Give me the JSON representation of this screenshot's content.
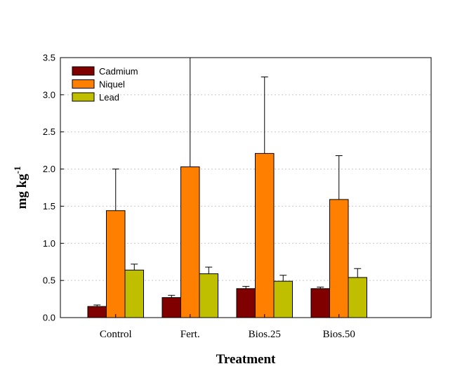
{
  "chart_data": {
    "type": "bar",
    "title": "",
    "xlabel": "Treatment",
    "ylabel": {
      "base": "mg  kg",
      "superscript": "-1"
    },
    "categories": [
      "Control",
      "Fert.",
      "Bios.25",
      "Bios.50"
    ],
    "ylim": [
      0,
      3.5
    ],
    "yticks": [
      "0.0",
      "0.5",
      "1.0",
      "1.5",
      "2.0",
      "2.5",
      "3.0",
      "3.5"
    ],
    "grid": "horizontal-dotted",
    "legend_position": "top-left",
    "error_bars": "upper",
    "series": [
      {
        "name": "Cadmium",
        "color": "#800000",
        "values": [
          0.15,
          0.27,
          0.39,
          0.39
        ],
        "errors": [
          0.02,
          0.03,
          0.03,
          0.02
        ]
      },
      {
        "name": "Niquel",
        "color": "#ff8000",
        "values": [
          1.44,
          2.03,
          2.21,
          1.59
        ],
        "errors": [
          0.56,
          1.47,
          1.03,
          0.59
        ]
      },
      {
        "name": "Lead",
        "color": "#bfbf00",
        "values": [
          0.64,
          0.59,
          0.49,
          0.54
        ],
        "errors": [
          0.08,
          0.09,
          0.08,
          0.12
        ]
      }
    ]
  }
}
